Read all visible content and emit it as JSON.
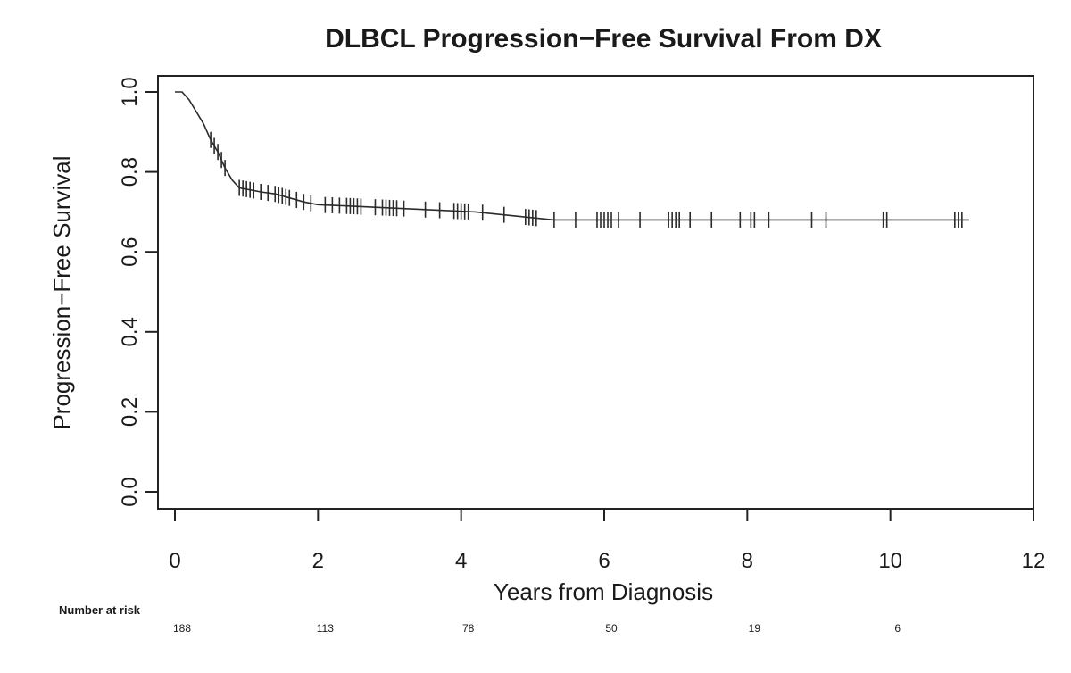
{
  "chart_data": {
    "type": "line",
    "title": "DLBCL Progression−Free Survival From DX",
    "xlabel": "Years from Diagnosis",
    "ylabel": "Progression−Free Survival",
    "xlim": [
      0,
      12
    ],
    "ylim": [
      0,
      1.0
    ],
    "xticks": [
      0,
      2,
      4,
      6,
      8,
      10,
      12
    ],
    "xtick_labels": [
      "0",
      "2",
      "4",
      "6",
      "8",
      "10",
      "12"
    ],
    "yticks": [
      0.0,
      0.2,
      0.4,
      0.6,
      0.8,
      1.0
    ],
    "ytick_labels": [
      "0.0",
      "0.2",
      "0.4",
      "0.6",
      "0.8",
      "1.0"
    ],
    "grid": false,
    "series": [
      {
        "x": [
          0,
          0.1,
          0.2,
          0.3,
          0.4,
          0.5,
          0.6,
          0.7,
          0.8,
          0.9,
          1.0,
          1.2,
          1.4,
          1.6,
          1.8,
          2.0,
          2.4,
          3.0,
          4.2,
          5.3,
          11.1
        ],
        "y": [
          1.0,
          1.0,
          0.98,
          0.95,
          0.92,
          0.88,
          0.85,
          0.81,
          0.78,
          0.76,
          0.757,
          0.75,
          0.745,
          0.735,
          0.725,
          0.718,
          0.715,
          0.71,
          0.7,
          0.68,
          0.68
        ],
        "censored": [
          0.5,
          0.55,
          0.6,
          0.65,
          0.7,
          0.9,
          0.95,
          1.0,
          1.05,
          1.1,
          1.2,
          1.3,
          1.4,
          1.45,
          1.5,
          1.55,
          1.6,
          1.7,
          1.8,
          1.9,
          2.1,
          2.2,
          2.3,
          2.4,
          2.45,
          2.5,
          2.55,
          2.6,
          2.8,
          2.9,
          2.95,
          3.0,
          3.05,
          3.1,
          3.2,
          3.5,
          3.7,
          3.9,
          3.95,
          4.0,
          4.05,
          4.1,
          4.3,
          4.6,
          4.9,
          4.95,
          5.0,
          5.05,
          5.3,
          5.6,
          5.9,
          5.95,
          6.0,
          6.05,
          6.1,
          6.2,
          6.5,
          6.9,
          6.95,
          7.0,
          7.05,
          7.2,
          7.5,
          7.9,
          8.05,
          8.1,
          8.3,
          8.9,
          9.1,
          9.9,
          9.95,
          10.9,
          10.95,
          11.0
        ]
      }
    ],
    "risk_table": {
      "label": "Number at risk",
      "times": [
        0,
        2,
        4,
        6,
        8,
        10
      ],
      "values": [
        "188",
        "113",
        "78",
        "50",
        "19",
        "6"
      ]
    }
  }
}
